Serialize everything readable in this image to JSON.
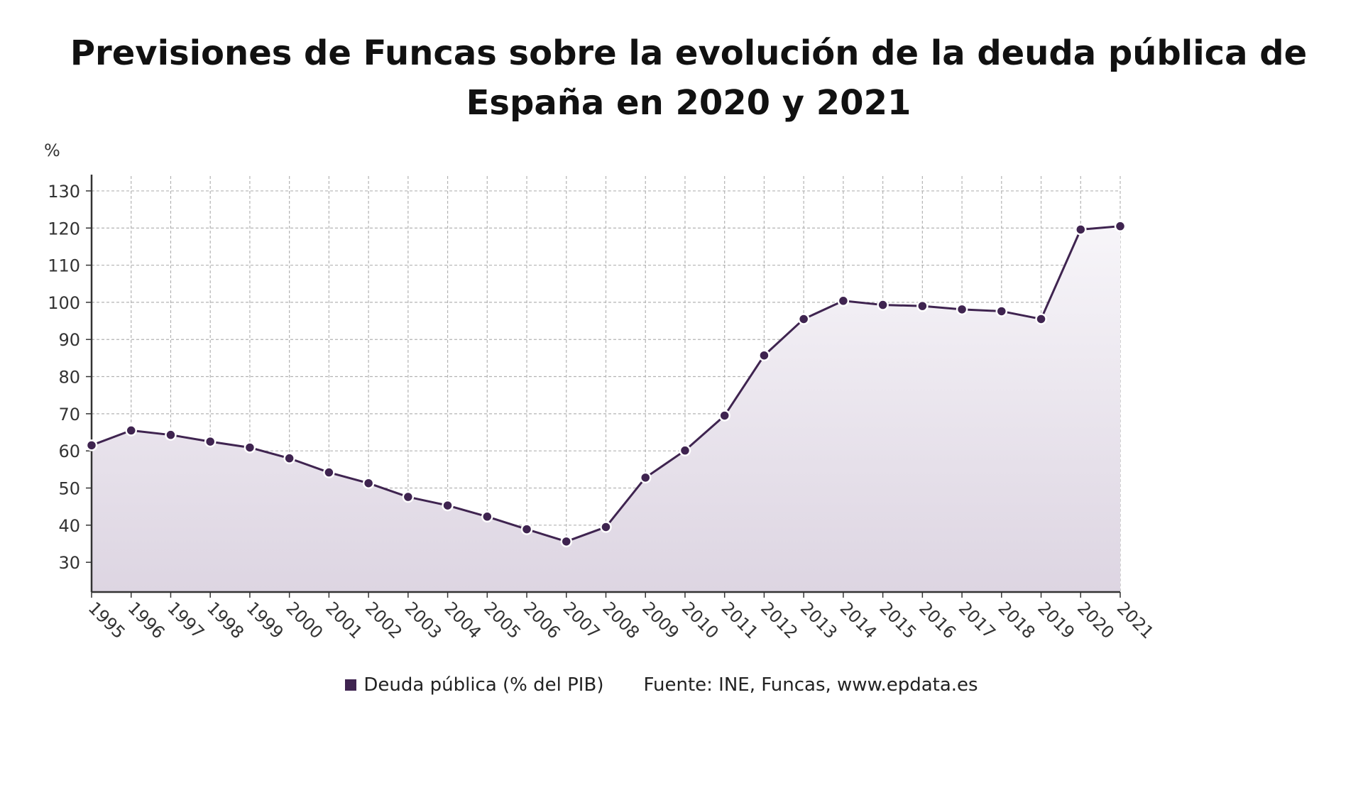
{
  "title_line1": "Previsiones de Funcas sobre la evolución de la deuda pública de",
  "title_line2": "España en 2020 y 2021",
  "legend": {
    "series_label": "Deuda pública (% del PIB)",
    "source_label": "Fuente: INE, Funcas, www.epdata.es"
  },
  "colors": {
    "line": "#3f2450",
    "area_top": "#f7f5f9",
    "area_bottom": "#ddd5e2",
    "grid": "#b3b3b3",
    "axis": "#333333"
  },
  "chart_data": {
    "type": "area",
    "title": "Previsiones de Funcas sobre la evolución de la deuda pública de España en 2020 y 2021",
    "ylabel": "%",
    "xlabel": "",
    "ylim": [
      22,
      134
    ],
    "yticks": [
      30,
      40,
      50,
      60,
      70,
      80,
      90,
      100,
      110,
      120,
      130
    ],
    "grid": true,
    "legend_position": "bottom",
    "x": [
      "1995",
      "1996",
      "1997",
      "1998",
      "1999",
      "2000",
      "2001",
      "2002",
      "2003",
      "2004",
      "2005",
      "2006",
      "2007",
      "2008",
      "2009",
      "2010",
      "2011",
      "2012",
      "2013",
      "2014",
      "2015",
      "2016",
      "2017",
      "2018",
      "2019",
      "2020",
      "2021"
    ],
    "series": [
      {
        "name": "Deuda pública (% del PIB)",
        "values": [
          61.5,
          65.5,
          64.3,
          62.5,
          60.9,
          58.0,
          54.2,
          51.3,
          47.6,
          45.3,
          42.3,
          38.9,
          35.6,
          39.5,
          52.8,
          60.1,
          69.5,
          85.7,
          95.5,
          100.4,
          99.3,
          99.0,
          98.1,
          97.6,
          95.5,
          119.6,
          120.5
        ]
      }
    ]
  }
}
